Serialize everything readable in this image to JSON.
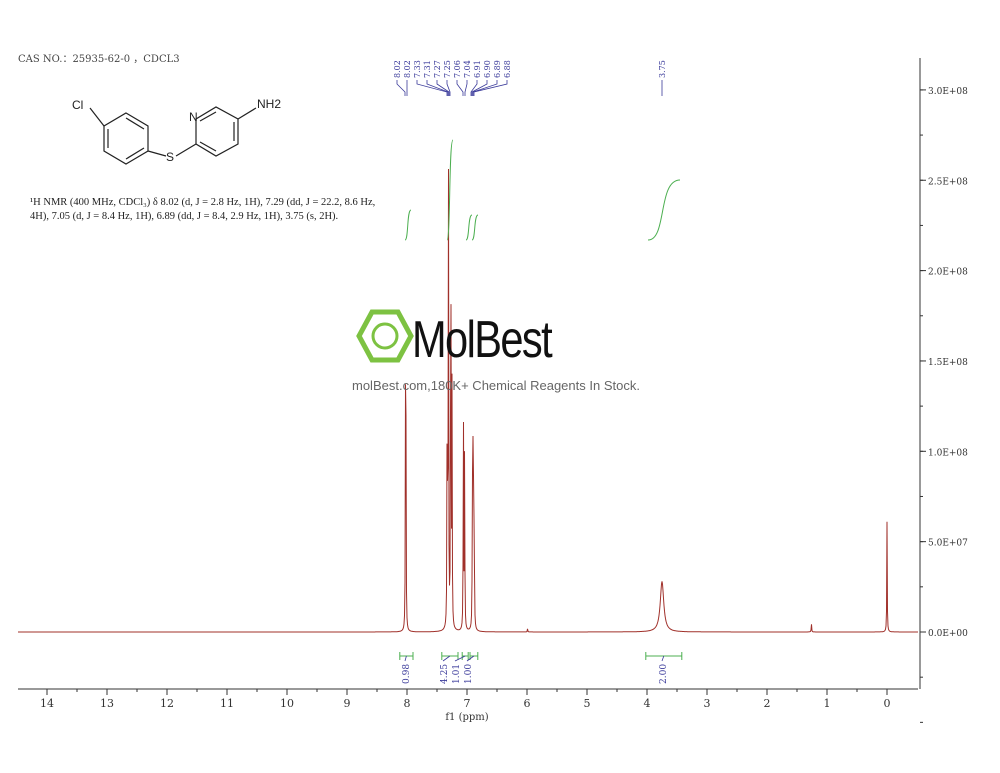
{
  "header": {
    "cas": "CAS NO.：25935-62-0 ，CDCL3"
  },
  "structure": {
    "atoms": [
      "Cl",
      "N",
      "S",
      "NH2"
    ]
  },
  "nmr_description": "¹H NMR (400 MHz, CDCl₃) δ 8.02 (d, J = 2.8 Hz, 1H), 7.29 (dd, J = 22.2, 8.6 Hz, 4H), 7.05 (d, J = 8.4 Hz, 1H), 6.89 (dd, J = 8.4, 2.9 Hz, 1H), 3.75 (s, 2H).",
  "watermark": {
    "brand": "MolBest",
    "tagline": "molBest.com,180K+ Chemical Reagents In Stock.",
    "color": "#7dc242"
  },
  "chart_data": {
    "type": "line",
    "xlabel": "f1 (ppm)",
    "xlim": [
      14.5,
      -0.5
    ],
    "x_reversed": true,
    "xticks": [
      14,
      13,
      12,
      11,
      10,
      9,
      8,
      7,
      6,
      5,
      4,
      3,
      2,
      1,
      0
    ],
    "ylim": [
      -30000000.0,
      320000000.0
    ],
    "yticks": [
      0,
      50000000.0,
      100000000.0,
      150000000.0,
      200000000.0,
      250000000.0,
      300000000.0
    ],
    "ytick_labels": [
      "0.0E+00",
      "5.0E+07",
      "1.0E+08",
      "1.5E+08",
      "2.0E+08",
      "2.5E+08",
      "3.0E+08"
    ],
    "axis_side": "right",
    "line_color": "#a0302a",
    "peaks": [
      {
        "ppm": 8.025,
        "height": 110000000.0
      },
      {
        "ppm": 8.018,
        "height": 110000000.0
      },
      {
        "ppm": 7.33,
        "height": 160000000.0
      },
      {
        "ppm": 7.31,
        "height": 290000000.0
      },
      {
        "ppm": 7.27,
        "height": 290000000.0
      },
      {
        "ppm": 7.25,
        "height": 130000000.0
      },
      {
        "ppm": 7.06,
        "height": 130000000.0
      },
      {
        "ppm": 7.04,
        "height": 110000000.0
      },
      {
        "ppm": 6.91,
        "height": 80000000.0
      },
      {
        "ppm": 6.9,
        "height": 85000000.0
      },
      {
        "ppm": 6.89,
        "height": 70000000.0
      },
      {
        "ppm": 6.88,
        "height": 65000000.0
      },
      {
        "ppm": 3.75,
        "height": 28000000.0,
        "broad": true
      },
      {
        "ppm": 1.26,
        "height": 5000000.0
      },
      {
        "ppm": 5.99,
        "height": 2000000.0
      },
      {
        "ppm": 0.0,
        "height": 61000000.0
      }
    ],
    "peak_labels": [
      "8.02",
      "8.02",
      "7.33",
      "7.31",
      "7.27",
      "7.25",
      "7.06",
      "7.04",
      "6.91",
      "6.90",
      "6.89",
      "6.88",
      "3.75"
    ],
    "integrals": [
      {
        "from": 8.12,
        "to": 7.9,
        "value": "0.98"
      },
      {
        "from": 7.42,
        "to": 7.15,
        "value": "4.25"
      },
      {
        "from": 7.08,
        "to": 6.98,
        "value": "1.01"
      },
      {
        "from": 6.95,
        "to": 6.82,
        "value": "1.00"
      },
      {
        "from": 4.02,
        "to": 3.42,
        "value": "2.00"
      }
    ],
    "integral_color": "#4caf50",
    "label_color": "#3a3a9a"
  }
}
